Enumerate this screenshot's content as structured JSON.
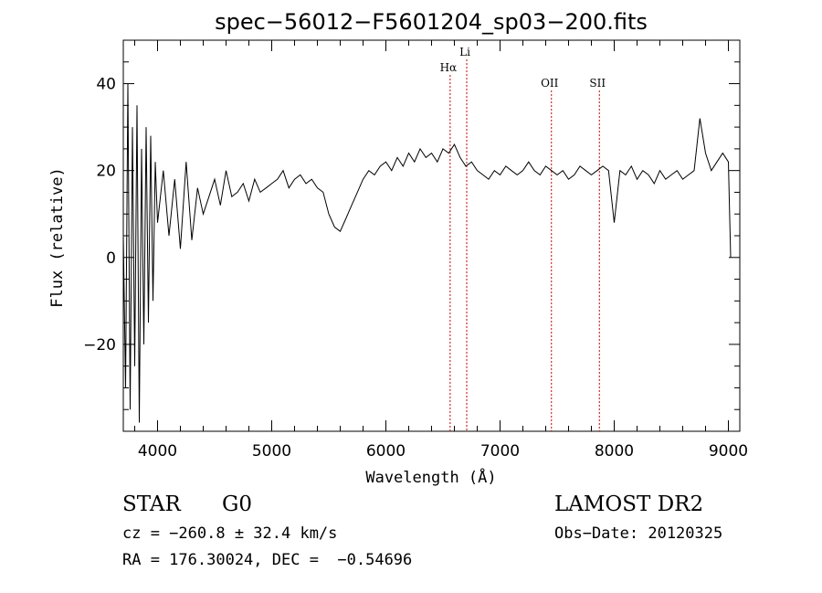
{
  "chart_data": {
    "type": "line",
    "title": "spec−56012−F5601204_sp03−200.fits",
    "xlabel": "Wavelength (Å)",
    "ylabel": "Flux (relative)",
    "xlim": [
      3700,
      9100
    ],
    "ylim": [
      -40,
      50
    ],
    "xticks": [
      4000,
      5000,
      6000,
      7000,
      8000,
      9000
    ],
    "yticks": [
      -20,
      0,
      20,
      40
    ],
    "xtick_labels": [
      "4000",
      "5000",
      "6000",
      "7000",
      "8000",
      "9000"
    ],
    "ytick_labels": [
      "−20",
      "0",
      "20",
      "40"
    ],
    "grid": false,
    "line_color": "#000000",
    "marker_line_color": "#cc0000",
    "line_markers": [
      {
        "label": "Hα",
        "wavelength": 6563
      },
      {
        "label": "Li",
        "wavelength": 6708
      },
      {
        "label": "OII",
        "wavelength": 7450
      },
      {
        "label": "SII",
        "wavelength": 7870
      }
    ],
    "series": [
      {
        "x": [
          3700,
          3720,
          3740,
          3760,
          3780,
          3800,
          3820,
          3840,
          3860,
          3880,
          3900,
          3920,
          3940,
          3960,
          3980,
          4000,
          4050,
          4100,
          4150,
          4200,
          4250,
          4300,
          4350,
          4400,
          4450,
          4500,
          4550,
          4600,
          4650,
          4700,
          4750,
          4800,
          4850,
          4900,
          4950,
          5000,
          5050,
          5100,
          5150,
          5200,
          5250,
          5300,
          5350,
          5400,
          5450,
          5500,
          5550,
          5600,
          5650,
          5700,
          5750,
          5800,
          5850,
          5900,
          5950,
          6000,
          6050,
          6100,
          6150,
          6200,
          6250,
          6300,
          6350,
          6400,
          6450,
          6500,
          6550,
          6600,
          6650,
          6700,
          6750,
          6800,
          6850,
          6900,
          6950,
          7000,
          7050,
          7100,
          7150,
          7200,
          7250,
          7300,
          7350,
          7400,
          7450,
          7500,
          7550,
          7600,
          7650,
          7700,
          7750,
          7800,
          7850,
          7900,
          7950,
          8000,
          8050,
          8100,
          8150,
          8200,
          8250,
          8300,
          8350,
          8400,
          8450,
          8500,
          8550,
          8600,
          8650,
          8700,
          8750,
          8800,
          8850,
          8900,
          8950,
          9000,
          9020
        ],
        "y": [
          5,
          -30,
          40,
          -35,
          30,
          -25,
          35,
          -38,
          25,
          -20,
          30,
          -15,
          28,
          -10,
          22,
          8,
          20,
          5,
          18,
          2,
          22,
          4,
          16,
          10,
          14,
          18,
          12,
          20,
          14,
          15,
          17,
          13,
          18,
          15,
          16,
          17,
          18,
          20,
          16,
          18,
          19,
          17,
          18,
          16,
          15,
          10,
          7,
          6,
          9,
          12,
          15,
          18,
          20,
          19,
          21,
          22,
          20,
          23,
          21,
          24,
          22,
          25,
          23,
          24,
          22,
          25,
          24,
          26,
          23,
          21,
          22,
          20,
          19,
          18,
          20,
          19,
          21,
          20,
          19,
          20,
          22,
          20,
          19,
          21,
          20,
          19,
          20,
          18,
          19,
          21,
          20,
          19,
          20,
          21,
          20,
          8,
          20,
          19,
          21,
          18,
          20,
          19,
          17,
          20,
          18,
          19,
          20,
          18,
          19,
          20,
          32,
          24,
          20,
          22,
          24,
          22,
          0
        ]
      }
    ]
  },
  "info": {
    "object_class": "STAR",
    "subclass": "G0",
    "survey": "LAMOST DR2",
    "redshift_line": "cz = −260.8 ± 32.4 km/s",
    "obs_date": "Obs−Date: 20120325",
    "coordinates": "RA = 176.30024, DEC =  −0.54696"
  }
}
